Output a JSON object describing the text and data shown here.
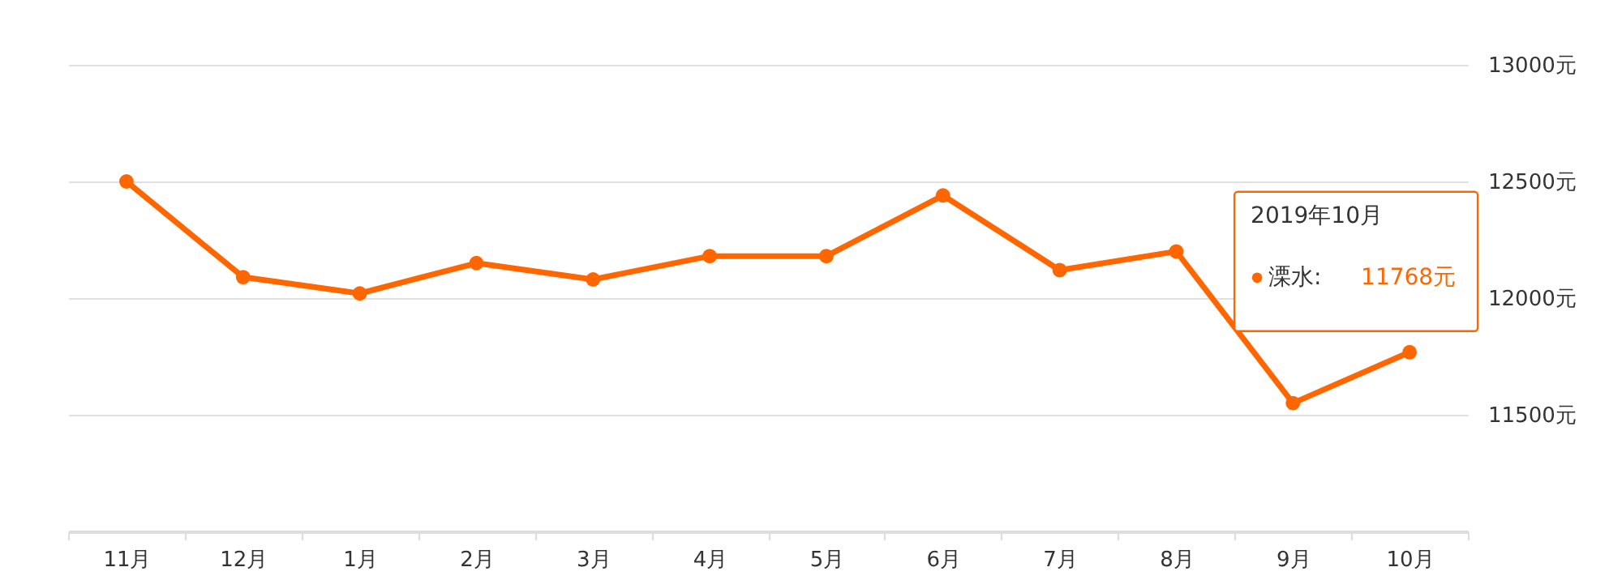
{
  "chart_data": {
    "type": "line",
    "categories": [
      "11月",
      "12月",
      "1月",
      "2月",
      "3月",
      "4月",
      "5月",
      "6月",
      "7月",
      "8月",
      "9月",
      "10月"
    ],
    "series": [
      {
        "name": "溧水:",
        "color": "#ff6600",
        "values": [
          12500,
          12090,
          12020,
          12150,
          12080,
          12180,
          12180,
          12440,
          12120,
          12200,
          11550,
          11768
        ],
        "value_labels": [
          null,
          null,
          null,
          null,
          null,
          null,
          null,
          null,
          null,
          null,
          null,
          "11768元"
        ]
      }
    ],
    "ylim": [
      11000,
      13000
    ],
    "yticks": [
      {
        "value": 11000,
        "label": null
      },
      {
        "value": 11500,
        "label": "11500元"
      },
      {
        "value": 12000,
        "label": "12000元"
      },
      {
        "value": 12500,
        "label": "12500元"
      },
      {
        "value": 13000,
        "label": "13000元"
      }
    ],
    "grid": "y",
    "marker": "circle",
    "line_style": "solid",
    "annotations": [
      "2019年10月"
    ]
  }
}
